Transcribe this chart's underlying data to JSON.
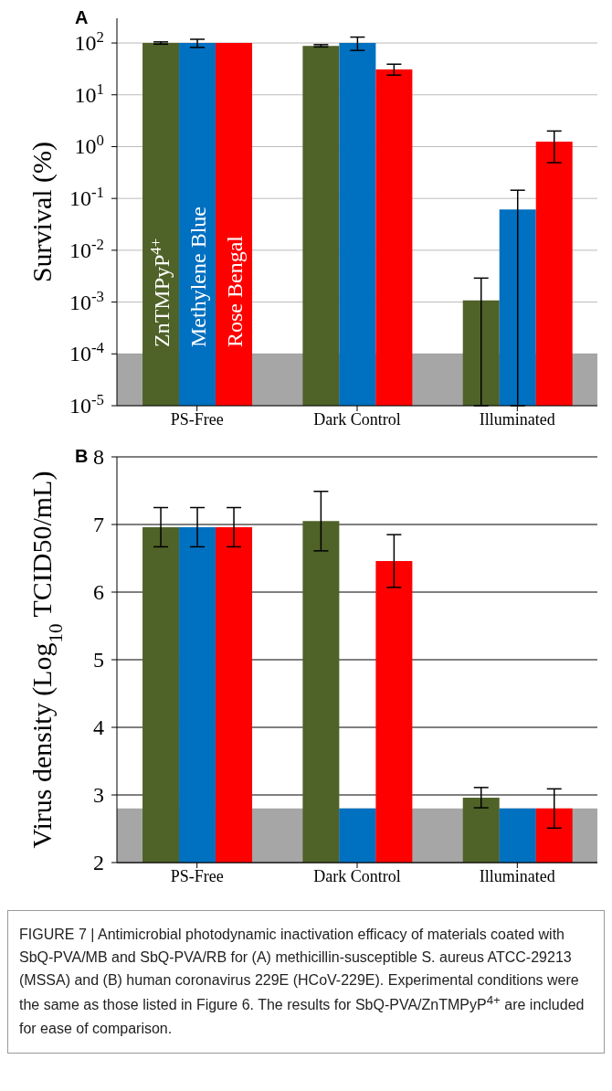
{
  "chart_data": [
    {
      "type": "bar",
      "title": "A",
      "ylabel": "Survival (%)",
      "log": "y",
      "categories": [
        "PS-Free",
        "Dark Control",
        "Illuminated"
      ],
      "series": [
        {
          "name": "ZnTMPyP$^{4+}$",
          "color": "#4f6228",
          "values": [
            100,
            88,
            0.00108
          ],
          "errors": [
            [
              95,
              105
            ],
            [
              84,
              93
            ],
            [
              1e-05,
              0.0029
            ]
          ]
        },
        {
          "name": "Methylene Blue",
          "color": "#0070c0",
          "values": [
            100,
            100,
            0.061
          ],
          "errors": [
            [
              82,
              118
            ],
            [
              72,
              130
            ],
            [
              1e-05,
              0.144
            ]
          ]
        },
        {
          "name": "Rose Bengal",
          "color": "#ff0000",
          "values": [
            100,
            31,
            1.25
          ],
          "errors": [
            null,
            [
              24,
              39
            ],
            [
              0.49,
              2.0
            ]
          ]
        }
      ],
      "ylim": [
        1e-05,
        300
      ],
      "yticks": [
        {
          "value": 1e-05,
          "label": "10$^{-5}$"
        },
        {
          "value": 0.0001,
          "label": "10$^{-4}$"
        },
        {
          "value": 0.001,
          "label": "10$^{-3}$"
        },
        {
          "value": 0.01,
          "label": "10$^{-2}$"
        },
        {
          "value": 0.1,
          "label": "10$^{-1}$"
        },
        {
          "value": 1,
          "label": "10$^{0}$"
        },
        {
          "value": 10,
          "label": "10$^{1}$"
        },
        {
          "value": 100,
          "label": "10$^{2}$"
        }
      ],
      "grid": "y",
      "bands": [
        {
          "axis": "y",
          "from": 1e-05,
          "to": 0.0001,
          "color": "#808080"
        }
      ]
    },
    {
      "type": "bar",
      "title": "B",
      "ylabel": "Virus density (Log$_{10}$ TCID50/mL)",
      "categories": [
        "PS-Free",
        "Dark Control",
        "Illuminated"
      ],
      "series": [
        {
          "color": "#4f6228",
          "values": [
            6.96,
            7.05,
            2.96
          ],
          "errors": [
            0.29,
            0.44,
            0.15
          ]
        },
        {
          "color": "#0070c0",
          "values": [
            6.96,
            2.8,
            2.8
          ],
          "errors": [
            0.29,
            null,
            null
          ]
        },
        {
          "color": "#ff0000",
          "values": [
            6.96,
            6.46,
            2.8
          ],
          "errors": [
            0.29,
            0.39,
            0.29
          ]
        }
      ],
      "ylim": [
        2,
        8
      ],
      "yticks": [
        2,
        3,
        4,
        5,
        6,
        7,
        8
      ],
      "grid": "y",
      "bands": [
        {
          "axis": "y",
          "from": 2,
          "to": 2.8,
          "color": "#808080"
        }
      ],
      "annotations": [
        "FIGURE 7 | Antimicrobial photodynamic inactivation efficacy of materials coated with SbQ-PVA/MB and SbQ-PVA/RB for (A) methicillin-susceptible S. aureus ATCC-29213 (MSSA) and (B) human coronavirus 229E (HCoV-229E). Experimental conditions were the same as those listed in Figure 6. The results for SbQ-PVA/ZnTMPyP$^{4+}$ are included for ease of comparison."
      ]
    }
  ]
}
